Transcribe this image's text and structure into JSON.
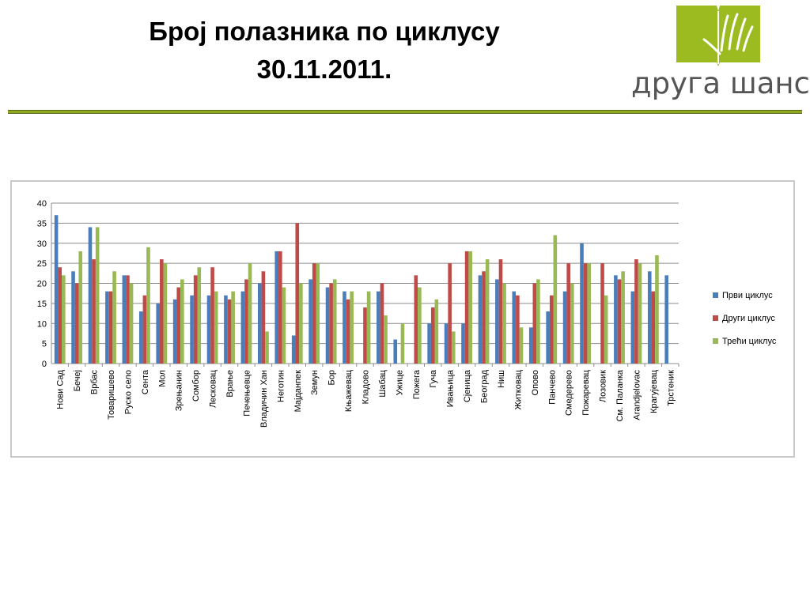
{
  "title": {
    "line1": "Број полазника по циклусу",
    "line2": "30.11.2011."
  },
  "logo": {
    "text": "друга шанса",
    "icon": "open-book-hand-icon",
    "color": "#9bbb21"
  },
  "chart_data": {
    "type": "bar",
    "title": "",
    "xlabel": "",
    "ylabel": "",
    "ylim": [
      0,
      40
    ],
    "yticks": [
      0,
      5,
      10,
      15,
      20,
      25,
      30,
      35,
      40
    ],
    "grid": true,
    "legend_position": "right",
    "categories": [
      "Нови Сад",
      "Бечеј",
      "Врбас",
      "Товаришево",
      "Руско село",
      "Сента",
      "Мол",
      "Зрењанин",
      "Сомбор",
      "Лесковац",
      "Врање",
      "Печењевце",
      "Владичин Хан",
      "Неготин",
      "Мајданпек",
      "Земун",
      "Бор",
      "Књажевац",
      "Кладово",
      "Шабац",
      "Ужице",
      "Пожега",
      "Гуча",
      "Ивањица",
      "Сјеница",
      "Београд",
      "Ниш",
      "Житковац",
      "Опово",
      "Панчево",
      "Смедерево",
      "Пожаревац",
      "Лозовик",
      "См. Паланка",
      "Arandjelovac",
      "Крагујевац",
      "Трстеник"
    ],
    "series": [
      {
        "name": "Први циклус",
        "color": "#4a7ebb",
        "values": [
          37,
          23,
          34,
          18,
          22,
          13,
          15,
          16,
          17,
          17,
          17,
          18,
          20,
          28,
          7,
          21,
          19,
          18,
          0,
          18,
          6,
          0,
          10,
          10,
          10,
          22,
          21,
          18,
          9,
          13,
          18,
          30,
          0,
          22,
          18,
          23,
          22
        ]
      },
      {
        "name": "Други циклус",
        "color": "#be4b48",
        "values": [
          24,
          20,
          26,
          18,
          22,
          17,
          26,
          19,
          22,
          24,
          16,
          21,
          23,
          28,
          35,
          25,
          20,
          16,
          14,
          20,
          0,
          22,
          14,
          25,
          28,
          23,
          26,
          17,
          20,
          17,
          25,
          25,
          25,
          21,
          26,
          18,
          0
        ]
      },
      {
        "name": "Трећи циклус",
        "color": "#98b954",
        "values": [
          22,
          28,
          34,
          23,
          20,
          29,
          25,
          21,
          24,
          18,
          18,
          25,
          8,
          19,
          20,
          25,
          21,
          18,
          18,
          12,
          10,
          19,
          16,
          8,
          28,
          26,
          20,
          9,
          21,
          32,
          20,
          25,
          17,
          23,
          25,
          27,
          0
        ]
      }
    ]
  }
}
